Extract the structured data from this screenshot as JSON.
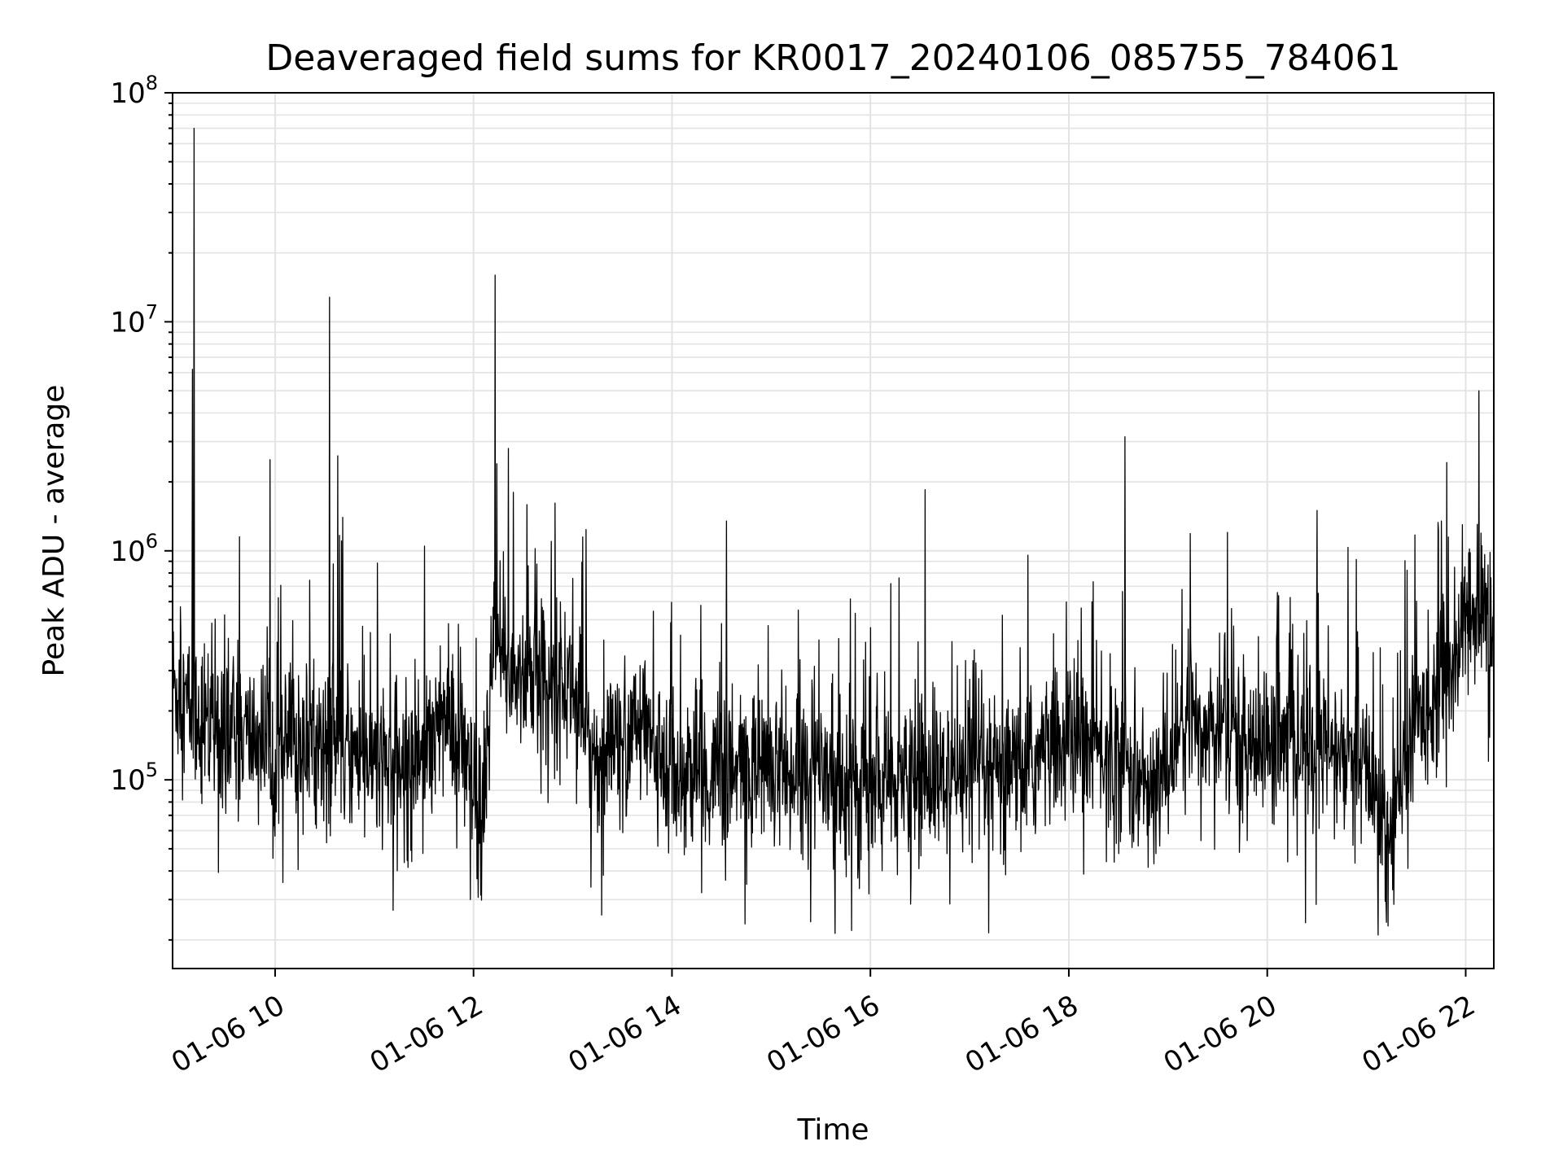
{
  "chart_data": {
    "type": "line",
    "title": "Deaveraged field sums for KR0017_20240106_085755_784061",
    "xlabel": "Time",
    "ylabel": "Peak ADU - average",
    "yscale": "log",
    "xlim": [
      "2024-01-06 08:58",
      "2024-01-06 22:17"
    ],
    "ylim": [
      15000,
      100000000
    ],
    "grid": true,
    "line_color": "#000000",
    "x_ticks": [
      {
        "t": "2024-01-06 10:00",
        "label": "01-06 10"
      },
      {
        "t": "2024-01-06 12:00",
        "label": "01-06 12"
      },
      {
        "t": "2024-01-06 14:00",
        "label": "01-06 14"
      },
      {
        "t": "2024-01-06 16:00",
        "label": "01-06 16"
      },
      {
        "t": "2024-01-06 18:00",
        "label": "01-06 18"
      },
      {
        "t": "2024-01-06 20:00",
        "label": "01-06 20"
      },
      {
        "t": "2024-01-06 22:00",
        "label": "01-06 22"
      }
    ],
    "y_ticks": [
      {
        "value": 100000,
        "base": "10",
        "exp": "5"
      },
      {
        "value": 1000000,
        "base": "10",
        "exp": "6"
      },
      {
        "value": 10000000,
        "base": "10",
        "exp": "7"
      },
      {
        "value": 100000000,
        "base": "10",
        "exp": "8"
      }
    ],
    "baseline": [
      {
        "t": "2024-01-06 08:58",
        "y": 260000
      },
      {
        "t": "2024-01-06 09:10",
        "y": 200000
      },
      {
        "t": "2024-01-06 09:30",
        "y": 170000
      },
      {
        "t": "2024-01-06 10:00",
        "y": 140000
      },
      {
        "t": "2024-01-06 10:30",
        "y": 150000
      },
      {
        "t": "2024-01-06 11:00",
        "y": 120000
      },
      {
        "t": "2024-01-06 11:20",
        "y": 110000
      },
      {
        "t": "2024-01-06 11:40",
        "y": 200000
      },
      {
        "t": "2024-01-06 11:55",
        "y": 120000
      },
      {
        "t": "2024-01-06 12:05",
        "y": 60000
      },
      {
        "t": "2024-01-06 12:12",
        "y": 350000
      },
      {
        "t": "2024-01-06 12:30",
        "y": 280000
      },
      {
        "t": "2024-01-06 13:00",
        "y": 260000
      },
      {
        "t": "2024-01-06 13:15",
        "y": 120000
      },
      {
        "t": "2024-01-06 13:40",
        "y": 170000
      },
      {
        "t": "2024-01-06 14:00",
        "y": 110000
      },
      {
        "t": "2024-01-06 14:30",
        "y": 100000
      },
      {
        "t": "2024-01-06 15:00",
        "y": 120000
      },
      {
        "t": "2024-01-06 15:30",
        "y": 110000
      },
      {
        "t": "2024-01-06 16:00",
        "y": 90000
      },
      {
        "t": "2024-01-06 16:30",
        "y": 100000
      },
      {
        "t": "2024-01-06 17:00",
        "y": 95000
      },
      {
        "t": "2024-01-06 17:30",
        "y": 110000
      },
      {
        "t": "2024-01-06 18:00",
        "y": 150000
      },
      {
        "t": "2024-01-06 18:30",
        "y": 130000
      },
      {
        "t": "2024-01-06 18:50",
        "y": 80000
      },
      {
        "t": "2024-01-06 19:10",
        "y": 180000
      },
      {
        "t": "2024-01-06 19:40",
        "y": 160000
      },
      {
        "t": "2024-01-06 20:00",
        "y": 140000
      },
      {
        "t": "2024-01-06 20:30",
        "y": 140000
      },
      {
        "t": "2024-01-06 21:00",
        "y": 110000
      },
      {
        "t": "2024-01-06 21:15",
        "y": 60000
      },
      {
        "t": "2024-01-06 21:30",
        "y": 180000
      },
      {
        "t": "2024-01-06 21:50",
        "y": 300000
      },
      {
        "t": "2024-01-06 22:05",
        "y": 550000
      },
      {
        "t": "2024-01-06 22:17",
        "y": 500000
      }
    ],
    "spikes": [
      {
        "t": "2024-01-06 09:11",
        "y": 70000000
      },
      {
        "t": "2024-01-06 09:10",
        "y": 6200000
      },
      {
        "t": "2024-01-06 09:57",
        "y": 2500000
      },
      {
        "t": "2024-01-06 10:33",
        "y": 12800000
      },
      {
        "t": "2024-01-06 10:38",
        "y": 2600000
      },
      {
        "t": "2024-01-06 10:41",
        "y": 1400000
      },
      {
        "t": "2024-01-06 12:13",
        "y": 16000000
      },
      {
        "t": "2024-01-06 12:14",
        "y": 2400000
      },
      {
        "t": "2024-01-06 12:21",
        "y": 2800000
      },
      {
        "t": "2024-01-06 12:24",
        "y": 1800000
      },
      {
        "t": "2024-01-06 12:47",
        "y": 1100000
      },
      {
        "t": "2024-01-06 14:33",
        "y": 1350000
      },
      {
        "t": "2024-01-06 16:33",
        "y": 1850000
      },
      {
        "t": "2024-01-06 18:34",
        "y": 3150000
      },
      {
        "t": "2024-01-06 20:30",
        "y": 1500000
      },
      {
        "t": "2024-01-06 22:08",
        "y": 5000000
      },
      {
        "t": "2024-01-06 21:58",
        "y": 1300000
      }
    ],
    "dips": [
      {
        "t": "2024-01-06 15:24",
        "y": 24000
      },
      {
        "t": "2024-01-06 21:07",
        "y": 21000
      },
      {
        "t": "2024-01-06 21:13",
        "y": 23000
      },
      {
        "t": "2024-01-06 11:58",
        "y": 30000
      },
      {
        "t": "2024-01-06 12:02",
        "y": 37000
      },
      {
        "t": "2024-01-06 13:11",
        "y": 34000
      }
    ]
  }
}
